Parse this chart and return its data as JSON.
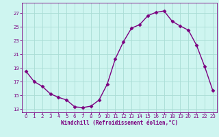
{
  "x": [
    0,
    1,
    2,
    3,
    4,
    5,
    6,
    7,
    8,
    9,
    10,
    11,
    12,
    13,
    14,
    15,
    16,
    17,
    18,
    19,
    20,
    21,
    22,
    23
  ],
  "y": [
    18.5,
    17.0,
    16.3,
    15.2,
    14.7,
    14.3,
    13.3,
    13.2,
    13.4,
    14.3,
    16.6,
    20.3,
    22.8,
    24.8,
    25.3,
    26.6,
    27.1,
    27.3,
    25.8,
    25.1,
    24.5,
    22.3,
    19.2,
    15.7
  ],
  "line_color": "#7b0080",
  "marker": "D",
  "marker_size": 2.5,
  "bg_color": "#cef5f0",
  "grid_color": "#aaddd5",
  "xlabel": "Windchill (Refroidissement éolien,°C)",
  "ylim": [
    12.5,
    28.5
  ],
  "xlim": [
    -0.5,
    23.5
  ],
  "yticks": [
    13,
    15,
    17,
    19,
    21,
    23,
    25,
    27
  ],
  "xticks": [
    0,
    1,
    2,
    3,
    4,
    5,
    6,
    7,
    8,
    9,
    10,
    11,
    12,
    13,
    14,
    15,
    16,
    17,
    18,
    19,
    20,
    21,
    22,
    23
  ],
  "label_color": "#7b0080",
  "tick_color": "#7b0080",
  "spine_color": "#7b0080",
  "font_size_ticks": 5.0,
  "font_size_xlabel": 5.5,
  "linewidth": 1.0
}
